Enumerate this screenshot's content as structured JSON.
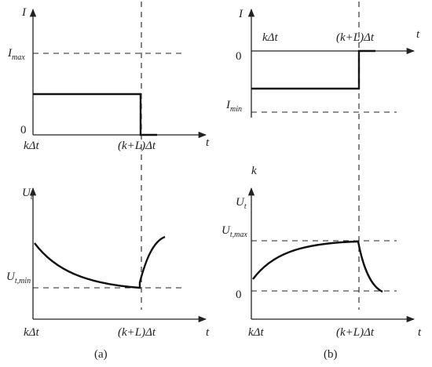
{
  "panel_a": {
    "caption": "(a)",
    "top": {
      "y_label": "I",
      "x_label": "t",
      "level_label": {
        "symbol": "I",
        "subscript": "max"
      },
      "zero": "0",
      "start": "kΔt",
      "end": "(k+L)Δt"
    },
    "bottom": {
      "y_label": {
        "symbol": "U",
        "subscript": "t"
      },
      "x_label": "t",
      "level_label": {
        "symbol": "U",
        "subscript": "t,min"
      },
      "start": "kΔt",
      "end": "(k+L)Δt"
    }
  },
  "panel_b": {
    "caption": "(b)",
    "top": {
      "y_label": "I",
      "x_label": "t",
      "level_label": {
        "symbol": "I",
        "subscript": "min"
      },
      "zero": "0",
      "start": "kΔt",
      "end": "(k+L)Δt"
    },
    "between": "k",
    "bottom": {
      "y_label": {
        "symbol": "U",
        "subscript": "t"
      },
      "x_label": "t",
      "level_label": {
        "symbol": "U",
        "subscript": "t,max"
      },
      "zero": "0",
      "start": "kΔt",
      "end": "(k+L)Δt"
    }
  }
}
